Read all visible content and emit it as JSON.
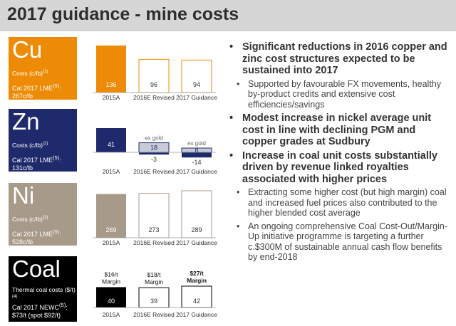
{
  "title": "2017 guidance - mine costs",
  "colors": {
    "cu": "#ee8b06",
    "zn": "#1e2a6b",
    "ni": "#a89a88",
    "coal": "#000000",
    "zn_light": "#c9ccd8"
  },
  "tiles": [
    {
      "symbol": "Cu",
      "sub": "Costs (c/lb)",
      "sub_note": "(1)",
      "lme_line1": "Cal 2017 LME",
      "lme_note": "(5)",
      "lme_line1_end": ":",
      "lme_line2": "267c/lb"
    },
    {
      "symbol": "Zn",
      "sub": "Costs (c/lb)",
      "sub_note": "(2)",
      "lme_line1": "Cal 2017 LME",
      "lme_note": "(5)",
      "lme_line1_end": ":",
      "lme_line2": "131c/lb"
    },
    {
      "symbol": "Ni",
      "sub": "Costs (c/lb)",
      "sub_note": "(3)",
      "lme_line1": "Cal 2017 LME",
      "lme_note": "(5)",
      "lme_line1_end": ":",
      "lme_line2": "528c/lb"
    },
    {
      "symbol": "Coal",
      "sub": "Thermal coal costs ($/t)",
      "sub_note": "(4)",
      "lme_line1": "Cal 2017 NEWC",
      "lme_note": "(5)",
      "lme_line1_end": ":",
      "lme_line2": "$73/t (spot $92/t)"
    }
  ],
  "chart_data": [
    {
      "type": "bar",
      "commodity": "Cu",
      "categories": [
        "2015A",
        "2016E Revised",
        "2017 Guidance"
      ],
      "values": [
        136,
        96,
        94
      ],
      "ylim": [
        0,
        136
      ]
    },
    {
      "type": "bar",
      "commodity": "Zn",
      "categories": [
        "2015A",
        "2016E Revised",
        "2017 Guidance"
      ],
      "values": [
        41,
        -3,
        -14
      ],
      "ex_gold_values": [
        null,
        18,
        8
      ],
      "ex_gold_label": "ex gold",
      "ylim": [
        -14,
        41
      ]
    },
    {
      "type": "bar",
      "commodity": "Ni",
      "categories": [
        "2015A",
        "2016E Revised",
        "2017 Guidance"
      ],
      "values": [
        269,
        273,
        289
      ],
      "ylim": [
        0,
        289
      ]
    },
    {
      "type": "bar",
      "commodity": "Coal",
      "categories": [
        "2015A",
        "2016E Revised",
        "2017 Guidance"
      ],
      "values": [
        40,
        39,
        42
      ],
      "margins": [
        "$16/t Margin",
        "$18/t Margin",
        "$27/t Margin"
      ],
      "ylim": [
        0,
        42
      ]
    }
  ],
  "bullets": [
    {
      "text": "Significant reductions in 2016 copper and zinc cost structures expected to be sustained into 2017",
      "sub": [
        "Supported by favourable FX movements, healthy by-product credits and extensive cost efficiencies/savings"
      ]
    },
    {
      "text": "Modest increase in nickel average unit cost in line with declining PGM and copper grades at Sudbury",
      "sub": []
    },
    {
      "text": "Increase in coal unit costs substantially driven by revenue linked royalties associated with higher prices",
      "sub": [
        "Extracting some higher cost (but high margin) coal and increased fuel prices also contributed to the higher blended cost average",
        "An ongoing comprehensive Coal Cost-Out/Margin-Up initiative programme is targeting a further c.$300M of sustainable annual cash flow benefits by end-2018"
      ]
    }
  ]
}
